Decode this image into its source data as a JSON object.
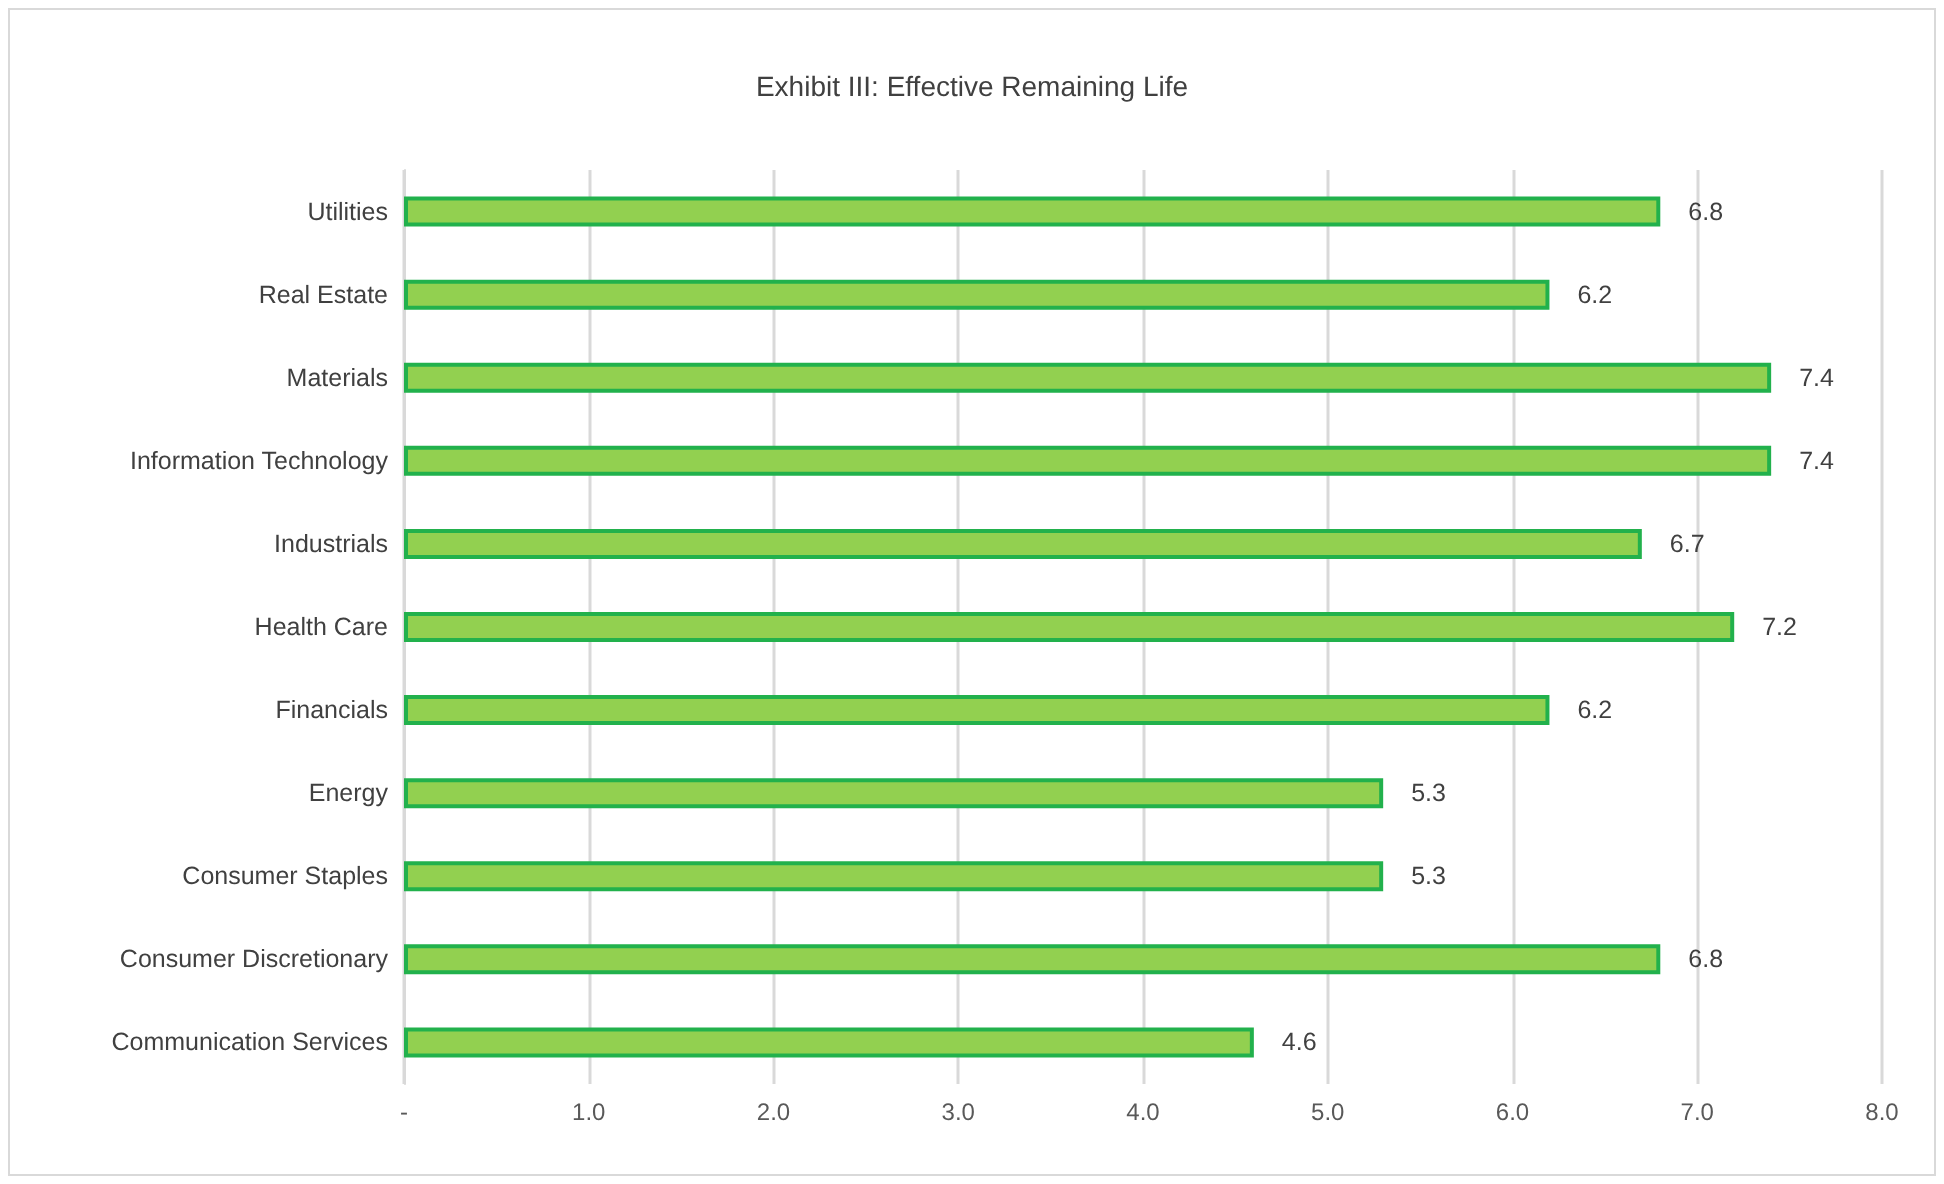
{
  "chart_data": {
    "type": "bar",
    "orientation": "horizontal",
    "title": "Exhibit III: Effective Remaining Life",
    "categories": [
      "Utilities",
      "Real Estate",
      "Materials",
      "Information Technology",
      "Industrials",
      "Health Care",
      "Financials",
      "Energy",
      "Consumer Staples",
      "Consumer Discretionary",
      "Communication Services"
    ],
    "values": [
      6.8,
      6.2,
      7.4,
      7.4,
      6.7,
      7.2,
      6.2,
      5.3,
      5.3,
      6.8,
      4.6
    ],
    "color": "#92d050",
    "xlim": [
      0,
      8
    ],
    "xticks": [
      {
        "value": 0,
        "label": "-"
      },
      {
        "value": 1,
        "label": "1.0"
      },
      {
        "value": 2,
        "label": "2.0"
      },
      {
        "value": 3,
        "label": "3.0"
      },
      {
        "value": 4,
        "label": "4.0"
      },
      {
        "value": 5,
        "label": "5.0"
      },
      {
        "value": 6,
        "label": "6.0"
      },
      {
        "value": 7,
        "label": "7.0"
      },
      {
        "value": 8,
        "label": "8.0"
      }
    ],
    "grid": "x",
    "data_labels": true
  }
}
